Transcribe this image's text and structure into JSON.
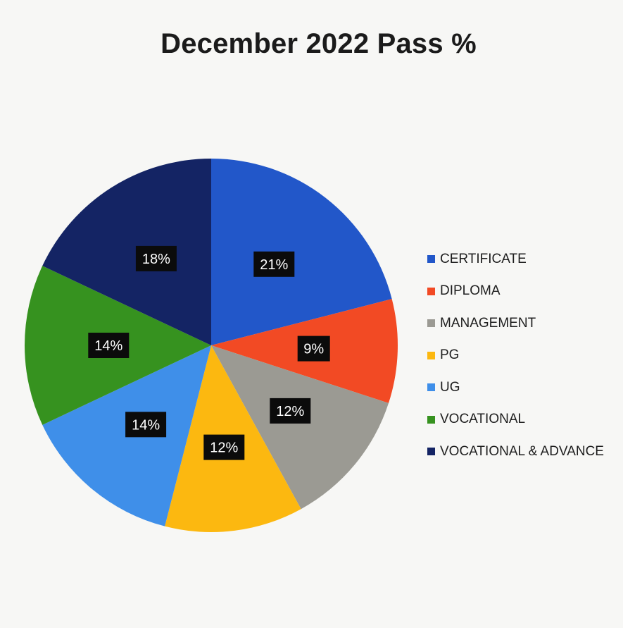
{
  "chart_data": {
    "type": "pie",
    "title": "December 2022 Pass %",
    "legend_position": "right",
    "slices": [
      {
        "name": "CERTIFICATE",
        "value": 21,
        "label": "21%",
        "color": "#2257c9"
      },
      {
        "name": "DIPLOMA",
        "value": 9,
        "label": "9%",
        "color": "#f24a24"
      },
      {
        "name": "MANAGEMENT",
        "value": 12,
        "label": "12%",
        "color": "#9b9a93"
      },
      {
        "name": "PG",
        "value": 12,
        "label": "12%",
        "color": "#fcb810"
      },
      {
        "name": "UG",
        "value": 14,
        "label": "14%",
        "color": "#3f8fe9"
      },
      {
        "name": "VOCATIONAL",
        "value": 14,
        "label": "14%",
        "color": "#36921f"
      },
      {
        "name": "VOCATIONAL & ADVANCE",
        "value": 18,
        "label": "18%",
        "color": "#142464"
      }
    ]
  }
}
